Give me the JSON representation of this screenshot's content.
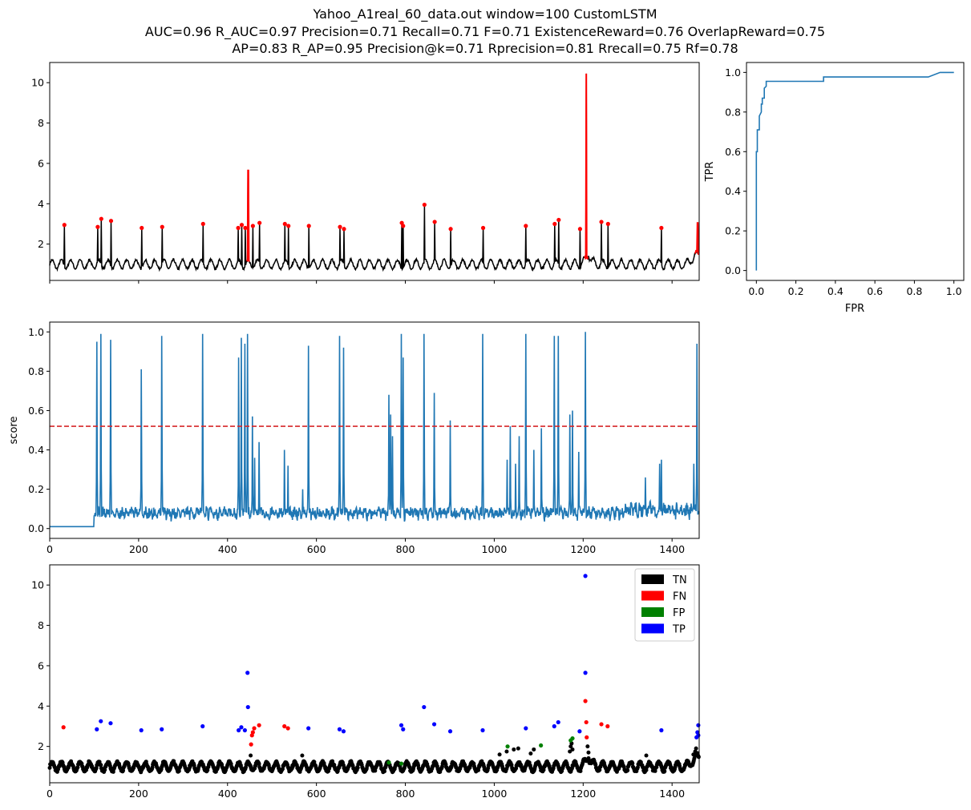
{
  "title": {
    "line1": "Yahoo_A1real_60_data.out    window=100   CustomLSTM",
    "line2": "AUC=0.96     R_AUC=0.97     Precision=0.71     Recall=0.71     F=0.71     ExistenceReward=0.76   OverlapReward=0.75",
    "line3": "AP=0.83     R_AP=0.95     Precision@k=0.71     Rprecision=0.81     Rrecall=0.75    Rf=0.78"
  },
  "colors": {
    "series": "#000000",
    "anomaly": "#ff0000",
    "score": "#1f77b4",
    "threshold": "#d62728",
    "tn": "#000000",
    "fn": "#ff0000",
    "fp": "#008000",
    "tp": "#0000ff"
  },
  "chart_data": [
    {
      "id": "timeseries",
      "type": "line",
      "xlim": [
        0,
        1461
      ],
      "ylim": [
        0.2,
        11.0
      ],
      "yticks": [
        2,
        4,
        6,
        8,
        10
      ],
      "xticks_unlabeled": [
        0,
        200,
        400,
        600,
        800,
        1000,
        1200,
        1400
      ],
      "baseline": {
        "mean": 1.0,
        "amplitude": 0.22,
        "period": 21
      },
      "spikes": [
        {
          "x": 33,
          "y": 2.95
        },
        {
          "x": 108,
          "y": 2.85
        },
        {
          "x": 116,
          "y": 3.25
        },
        {
          "x": 138,
          "y": 3.15
        },
        {
          "x": 207,
          "y": 2.8
        },
        {
          "x": 253,
          "y": 2.85
        },
        {
          "x": 345,
          "y": 3.0
        },
        {
          "x": 424,
          "y": 2.8
        },
        {
          "x": 432,
          "y": 2.95
        },
        {
          "x": 440,
          "y": 2.8
        },
        {
          "x": 446,
          "y": 5.65
        },
        {
          "x": 457,
          "y": 2.9
        },
        {
          "x": 472,
          "y": 3.05
        },
        {
          "x": 529,
          "y": 3.0
        },
        {
          "x": 537,
          "y": 2.9
        },
        {
          "x": 583,
          "y": 2.9
        },
        {
          "x": 653,
          "y": 2.85
        },
        {
          "x": 662,
          "y": 2.75
        },
        {
          "x": 792,
          "y": 3.05
        },
        {
          "x": 795,
          "y": 2.9
        },
        {
          "x": 843,
          "y": 3.95
        },
        {
          "x": 866,
          "y": 3.1
        },
        {
          "x": 902,
          "y": 2.75
        },
        {
          "x": 975,
          "y": 2.8
        },
        {
          "x": 1071,
          "y": 2.9
        },
        {
          "x": 1136,
          "y": 3.0
        },
        {
          "x": 1145,
          "y": 3.2
        },
        {
          "x": 1193,
          "y": 2.75
        },
        {
          "x": 1207,
          "y": 10.45
        },
        {
          "x": 1241,
          "y": 3.1
        },
        {
          "x": 1256,
          "y": 3.0
        },
        {
          "x": 1376,
          "y": 2.8
        },
        {
          "x": 1458,
          "y": 3.05
        }
      ],
      "anomaly_points": [
        {
          "x": 33,
          "y": 2.95
        },
        {
          "x": 108,
          "y": 2.85
        },
        {
          "x": 116,
          "y": 3.25
        },
        {
          "x": 138,
          "y": 3.15
        },
        {
          "x": 207,
          "y": 2.8
        },
        {
          "x": 253,
          "y": 2.85
        },
        {
          "x": 345,
          "y": 3.0
        },
        {
          "x": 424,
          "y": 2.8
        },
        {
          "x": 432,
          "y": 2.95
        },
        {
          "x": 440,
          "y": 2.8
        },
        {
          "x": 457,
          "y": 2.9
        },
        {
          "x": 472,
          "y": 3.05
        },
        {
          "x": 529,
          "y": 3.0
        },
        {
          "x": 537,
          "y": 2.9
        },
        {
          "x": 583,
          "y": 2.9
        },
        {
          "x": 653,
          "y": 2.85
        },
        {
          "x": 662,
          "y": 2.75
        },
        {
          "x": 792,
          "y": 3.05
        },
        {
          "x": 795,
          "y": 2.9
        },
        {
          "x": 843,
          "y": 3.95
        },
        {
          "x": 866,
          "y": 3.1
        },
        {
          "x": 902,
          "y": 2.75
        },
        {
          "x": 975,
          "y": 2.8
        },
        {
          "x": 1071,
          "y": 2.9
        },
        {
          "x": 1136,
          "y": 3.0
        },
        {
          "x": 1145,
          "y": 3.2
        },
        {
          "x": 1193,
          "y": 2.75
        },
        {
          "x": 1241,
          "y": 3.1
        },
        {
          "x": 1256,
          "y": 3.0
        },
        {
          "x": 1376,
          "y": 2.8
        }
      ],
      "anomaly_segments": [
        {
          "x_start": 444,
          "x_end": 449,
          "y_peak": 5.65
        },
        {
          "x_start": 1203,
          "x_end": 1211,
          "y_peak": 10.45
        },
        {
          "x_start": 1452,
          "x_end": 1461,
          "y_peak": 3.05
        }
      ]
    },
    {
      "id": "roc",
      "type": "line",
      "xlabel": "FPR",
      "ylabel": "TPR",
      "xlim": [
        -0.05,
        1.05
      ],
      "ylim": [
        -0.05,
        1.05
      ],
      "xticks": [
        0.0,
        0.2,
        0.4,
        0.6,
        0.8,
        1.0
      ],
      "yticks": [
        0.0,
        0.2,
        0.4,
        0.6,
        0.8,
        1.0
      ],
      "x": [
        0,
        0,
        0.005,
        0.005,
        0.015,
        0.015,
        0.025,
        0.025,
        0.03,
        0.03,
        0.04,
        0.04,
        0.05,
        0.05,
        0.34,
        0.34,
        0.87,
        0.93,
        1.0
      ],
      "y": [
        0,
        0.6,
        0.6,
        0.71,
        0.71,
        0.78,
        0.8,
        0.84,
        0.84,
        0.87,
        0.87,
        0.92,
        0.93,
        0.955,
        0.955,
        0.977,
        0.977,
        1.0,
        1.0
      ]
    },
    {
      "id": "score",
      "type": "line",
      "ylabel": "score",
      "xlim": [
        0,
        1461
      ],
      "ylim": [
        -0.05,
        1.05
      ],
      "xticks": [
        0,
        200,
        400,
        600,
        800,
        1000,
        1200,
        1400
      ],
      "yticks": [
        0.0,
        0.2,
        0.4,
        0.6,
        0.8,
        1.0
      ],
      "threshold": 0.52,
      "flat_until": 100,
      "flat_value": 0.01,
      "noise_level": 0.05,
      "peaks": [
        {
          "x": 106,
          "y": 0.95
        },
        {
          "x": 115,
          "y": 0.99
        },
        {
          "x": 137,
          "y": 0.96
        },
        {
          "x": 206,
          "y": 0.81
        },
        {
          "x": 252,
          "y": 0.98
        },
        {
          "x": 344,
          "y": 0.99
        },
        {
          "x": 425,
          "y": 0.87
        },
        {
          "x": 431,
          "y": 0.97
        },
        {
          "x": 439,
          "y": 0.94
        },
        {
          "x": 445,
          "y": 0.99
        },
        {
          "x": 456,
          "y": 0.57
        },
        {
          "x": 461,
          "y": 0.36
        },
        {
          "x": 471,
          "y": 0.44
        },
        {
          "x": 528,
          "y": 0.4
        },
        {
          "x": 536,
          "y": 0.32
        },
        {
          "x": 569,
          "y": 0.2
        },
        {
          "x": 582,
          "y": 0.93
        },
        {
          "x": 652,
          "y": 0.98
        },
        {
          "x": 661,
          "y": 0.92
        },
        {
          "x": 763,
          "y": 0.68
        },
        {
          "x": 767,
          "y": 0.58
        },
        {
          "x": 771,
          "y": 0.47
        },
        {
          "x": 791,
          "y": 0.99
        },
        {
          "x": 795,
          "y": 0.87
        },
        {
          "x": 842,
          "y": 0.99
        },
        {
          "x": 865,
          "y": 0.69
        },
        {
          "x": 901,
          "y": 0.55
        },
        {
          "x": 974,
          "y": 0.99
        },
        {
          "x": 1029,
          "y": 0.35
        },
        {
          "x": 1036,
          "y": 0.52
        },
        {
          "x": 1048,
          "y": 0.33
        },
        {
          "x": 1056,
          "y": 0.47
        },
        {
          "x": 1071,
          "y": 0.99
        },
        {
          "x": 1089,
          "y": 0.4
        },
        {
          "x": 1106,
          "y": 0.51
        },
        {
          "x": 1135,
          "y": 0.98
        },
        {
          "x": 1144,
          "y": 0.98
        },
        {
          "x": 1170,
          "y": 0.58
        },
        {
          "x": 1176,
          "y": 0.6
        },
        {
          "x": 1190,
          "y": 0.39
        },
        {
          "x": 1205,
          "y": 1.0
        },
        {
          "x": 1340,
          "y": 0.26
        },
        {
          "x": 1372,
          "y": 0.33
        },
        {
          "x": 1376,
          "y": 0.35
        },
        {
          "x": 1449,
          "y": 0.33
        },
        {
          "x": 1456,
          "y": 0.94
        }
      ]
    },
    {
      "id": "classification",
      "type": "scatter",
      "xlim": [
        0,
        1461
      ],
      "ylim": [
        0.2,
        11.0
      ],
      "xticks": [
        0,
        200,
        400,
        600,
        800,
        1000,
        1200,
        1400
      ],
      "yticks": [
        2,
        4,
        6,
        8,
        10
      ],
      "legend": [
        "TN",
        "FN",
        "FP",
        "TP"
      ],
      "legend_position": "top-right",
      "tp": [
        {
          "x": 106,
          "y": 2.85
        },
        {
          "x": 115,
          "y": 3.25
        },
        {
          "x": 137,
          "y": 3.15
        },
        {
          "x": 206,
          "y": 2.8
        },
        {
          "x": 252,
          "y": 2.85
        },
        {
          "x": 344,
          "y": 3.0
        },
        {
          "x": 425,
          "y": 2.8
        },
        {
          "x": 431,
          "y": 2.95
        },
        {
          "x": 439,
          "y": 2.8
        },
        {
          "x": 445,
          "y": 5.65
        },
        {
          "x": 446,
          "y": 3.95
        },
        {
          "x": 582,
          "y": 2.9
        },
        {
          "x": 652,
          "y": 2.85
        },
        {
          "x": 661,
          "y": 2.75
        },
        {
          "x": 791,
          "y": 3.05
        },
        {
          "x": 795,
          "y": 2.85
        },
        {
          "x": 842,
          "y": 3.95
        },
        {
          "x": 865,
          "y": 3.1
        },
        {
          "x": 901,
          "y": 2.75
        },
        {
          "x": 974,
          "y": 2.8
        },
        {
          "x": 1071,
          "y": 2.9
        },
        {
          "x": 1135,
          "y": 3.0
        },
        {
          "x": 1144,
          "y": 3.2
        },
        {
          "x": 1192,
          "y": 2.75
        },
        {
          "x": 1205,
          "y": 10.45
        },
        {
          "x": 1205,
          "y": 5.65
        },
        {
          "x": 1376,
          "y": 2.8
        },
        {
          "x": 1455,
          "y": 2.45
        },
        {
          "x": 1457,
          "y": 2.7
        },
        {
          "x": 1459,
          "y": 3.05
        },
        {
          "x": 1459,
          "y": 2.55
        }
      ],
      "fn": [
        {
          "x": 31,
          "y": 2.95
        },
        {
          "x": 453,
          "y": 2.1
        },
        {
          "x": 455,
          "y": 2.55
        },
        {
          "x": 457,
          "y": 2.7
        },
        {
          "x": 460,
          "y": 2.9
        },
        {
          "x": 471,
          "y": 3.05
        },
        {
          "x": 528,
          "y": 3.0
        },
        {
          "x": 536,
          "y": 2.9
        },
        {
          "x": 1205,
          "y": 4.25
        },
        {
          "x": 1207,
          "y": 3.2
        },
        {
          "x": 1208,
          "y": 2.45
        },
        {
          "x": 1241,
          "y": 3.1
        },
        {
          "x": 1255,
          "y": 3.0
        }
      ],
      "fp": [
        {
          "x": 763,
          "y": 1.2
        },
        {
          "x": 791,
          "y": 1.15
        },
        {
          "x": 1030,
          "y": 2.0
        },
        {
          "x": 1105,
          "y": 2.05
        },
        {
          "x": 1172,
          "y": 2.3
        },
        {
          "x": 1176,
          "y": 2.4
        }
      ],
      "tn_extra": [
        {
          "x": 452,
          "y": 1.55
        },
        {
          "x": 568,
          "y": 1.55
        },
        {
          "x": 1012,
          "y": 1.6
        },
        {
          "x": 1028,
          "y": 1.75
        },
        {
          "x": 1044,
          "y": 1.85
        },
        {
          "x": 1054,
          "y": 1.9
        },
        {
          "x": 1082,
          "y": 1.65
        },
        {
          "x": 1089,
          "y": 1.85
        },
        {
          "x": 1170,
          "y": 1.75
        },
        {
          "x": 1172,
          "y": 2.0
        },
        {
          "x": 1174,
          "y": 2.15
        },
        {
          "x": 1176,
          "y": 1.85
        },
        {
          "x": 1210,
          "y": 2.0
        },
        {
          "x": 1212,
          "y": 1.7
        },
        {
          "x": 1342,
          "y": 1.55
        },
        {
          "x": 1448,
          "y": 1.6
        },
        {
          "x": 1452,
          "y": 1.75
        },
        {
          "x": 1454,
          "y": 1.9
        },
        {
          "x": 1456,
          "y": 1.55
        }
      ]
    }
  ]
}
